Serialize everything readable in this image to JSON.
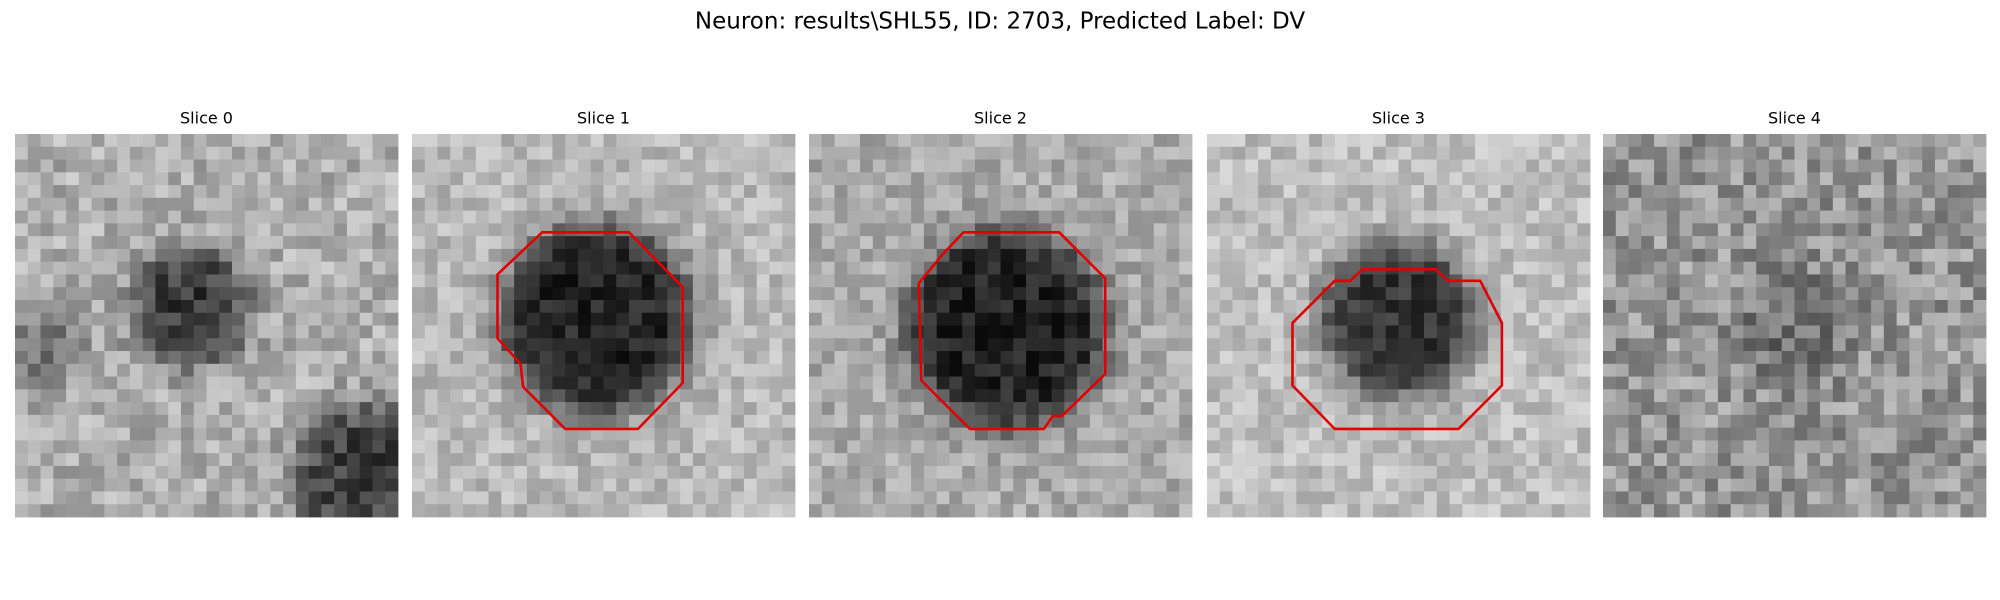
{
  "title": "Neuron: results\\SHL55, ID: 2703, Predicted Label: DV",
  "panels": [
    {
      "title": "Slice 0"
    },
    {
      "title": "Slice 1"
    },
    {
      "title": "Slice 2"
    },
    {
      "title": "Slice 3"
    },
    {
      "title": "Slice 4"
    }
  ]
}
